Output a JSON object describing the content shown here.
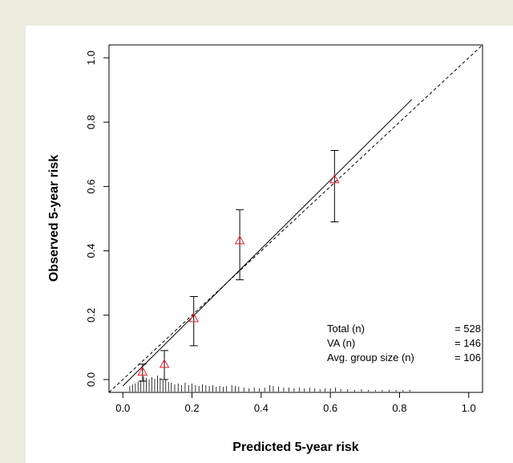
{
  "chart_data": {
    "type": "scatter",
    "xlabel": "Predicted 5-year risk",
    "ylabel": "Observed 5-year risk",
    "xlim": [
      -0.04,
      1.04
    ],
    "ylim": [
      -0.04,
      1.04
    ],
    "x_ticks": [
      "0.0",
      "0.2",
      "0.4",
      "0.6",
      "0.8",
      "1.0"
    ],
    "y_ticks": [
      "0.0",
      "0.2",
      "0.4",
      "0.6",
      "0.8",
      "1.0"
    ],
    "grid": false,
    "reference_line": {
      "style": "dashed",
      "from": [
        -0.04,
        -0.04
      ],
      "to": [
        1.04,
        1.04
      ]
    },
    "fitted_line": {
      "style": "solid",
      "from": [
        0.0,
        -0.02
      ],
      "to": [
        0.835,
        0.87
      ]
    },
    "points": [
      {
        "x": 0.057,
        "y": 0.024,
        "lower": -0.005,
        "upper": 0.048
      },
      {
        "x": 0.12,
        "y": 0.048,
        "lower": 0.0,
        "upper": 0.09
      },
      {
        "x": 0.205,
        "y": 0.19,
        "lower": 0.105,
        "upper": 0.258
      },
      {
        "x": 0.338,
        "y": 0.432,
        "lower": 0.31,
        "upper": 0.528
      },
      {
        "x": 0.612,
        "y": 0.622,
        "lower": 0.49,
        "upper": 0.712
      }
    ],
    "marker_color": "#e8212a",
    "rug": [
      {
        "x": 0.02,
        "h": 0.35
      },
      {
        "x": 0.028,
        "h": 0.45
      },
      {
        "x": 0.036,
        "h": 0.5
      },
      {
        "x": 0.044,
        "h": 0.6
      },
      {
        "x": 0.052,
        "h": 0.7
      },
      {
        "x": 0.06,
        "h": 0.95
      },
      {
        "x": 0.068,
        "h": 0.85
      },
      {
        "x": 0.076,
        "h": 0.75
      },
      {
        "x": 0.084,
        "h": 0.9
      },
      {
        "x": 0.092,
        "h": 0.8
      },
      {
        "x": 0.1,
        "h": 1.0
      },
      {
        "x": 0.108,
        "h": 0.85
      },
      {
        "x": 0.116,
        "h": 0.7
      },
      {
        "x": 0.124,
        "h": 0.75
      },
      {
        "x": 0.132,
        "h": 0.6
      },
      {
        "x": 0.14,
        "h": 0.55
      },
      {
        "x": 0.15,
        "h": 0.45
      },
      {
        "x": 0.16,
        "h": 0.5
      },
      {
        "x": 0.17,
        "h": 0.4
      },
      {
        "x": 0.18,
        "h": 0.55
      },
      {
        "x": 0.19,
        "h": 0.4
      },
      {
        "x": 0.2,
        "h": 0.5
      },
      {
        "x": 0.21,
        "h": 0.4
      },
      {
        "x": 0.22,
        "h": 0.35
      },
      {
        "x": 0.23,
        "h": 0.45
      },
      {
        "x": 0.24,
        "h": 0.4
      },
      {
        "x": 0.25,
        "h": 0.35
      },
      {
        "x": 0.26,
        "h": 0.4
      },
      {
        "x": 0.27,
        "h": 0.3
      },
      {
        "x": 0.28,
        "h": 0.35
      },
      {
        "x": 0.29,
        "h": 0.3
      },
      {
        "x": 0.3,
        "h": 0.35
      },
      {
        "x": 0.315,
        "h": 0.4
      },
      {
        "x": 0.325,
        "h": 0.35
      },
      {
        "x": 0.335,
        "h": 0.3
      },
      {
        "x": 0.35,
        "h": 0.25
      },
      {
        "x": 0.365,
        "h": 0.2
      },
      {
        "x": 0.38,
        "h": 0.25
      },
      {
        "x": 0.395,
        "h": 0.2
      },
      {
        "x": 0.41,
        "h": 0.25
      },
      {
        "x": 0.425,
        "h": 0.4
      },
      {
        "x": 0.435,
        "h": 0.35
      },
      {
        "x": 0.45,
        "h": 0.3
      },
      {
        "x": 0.465,
        "h": 0.25
      },
      {
        "x": 0.48,
        "h": 0.25
      },
      {
        "x": 0.495,
        "h": 0.2
      },
      {
        "x": 0.51,
        "h": 0.25
      },
      {
        "x": 0.525,
        "h": 0.2
      },
      {
        "x": 0.54,
        "h": 0.25
      },
      {
        "x": 0.555,
        "h": 0.2
      },
      {
        "x": 0.57,
        "h": 0.15
      },
      {
        "x": 0.585,
        "h": 0.2
      },
      {
        "x": 0.6,
        "h": 0.2
      },
      {
        "x": 0.615,
        "h": 0.25
      },
      {
        "x": 0.63,
        "h": 0.15
      },
      {
        "x": 0.65,
        "h": 0.15
      },
      {
        "x": 0.67,
        "h": 0.1
      },
      {
        "x": 0.69,
        "h": 0.15
      },
      {
        "x": 0.71,
        "h": 0.1
      },
      {
        "x": 0.73,
        "h": 0.1
      },
      {
        "x": 0.75,
        "h": 0.1
      },
      {
        "x": 0.77,
        "h": 0.1
      },
      {
        "x": 0.79,
        "h": 0.1
      },
      {
        "x": 0.81,
        "h": 0.1
      },
      {
        "x": 0.83,
        "h": 0.1
      }
    ],
    "legend": {
      "placement": "bottom-right",
      "rows": [
        {
          "label": "Total (n)",
          "value": "= 528"
        },
        {
          "label": "VA (n)",
          "value": "= 146"
        },
        {
          "label": "Avg. group size (n)",
          "value": "= 106"
        }
      ]
    }
  }
}
